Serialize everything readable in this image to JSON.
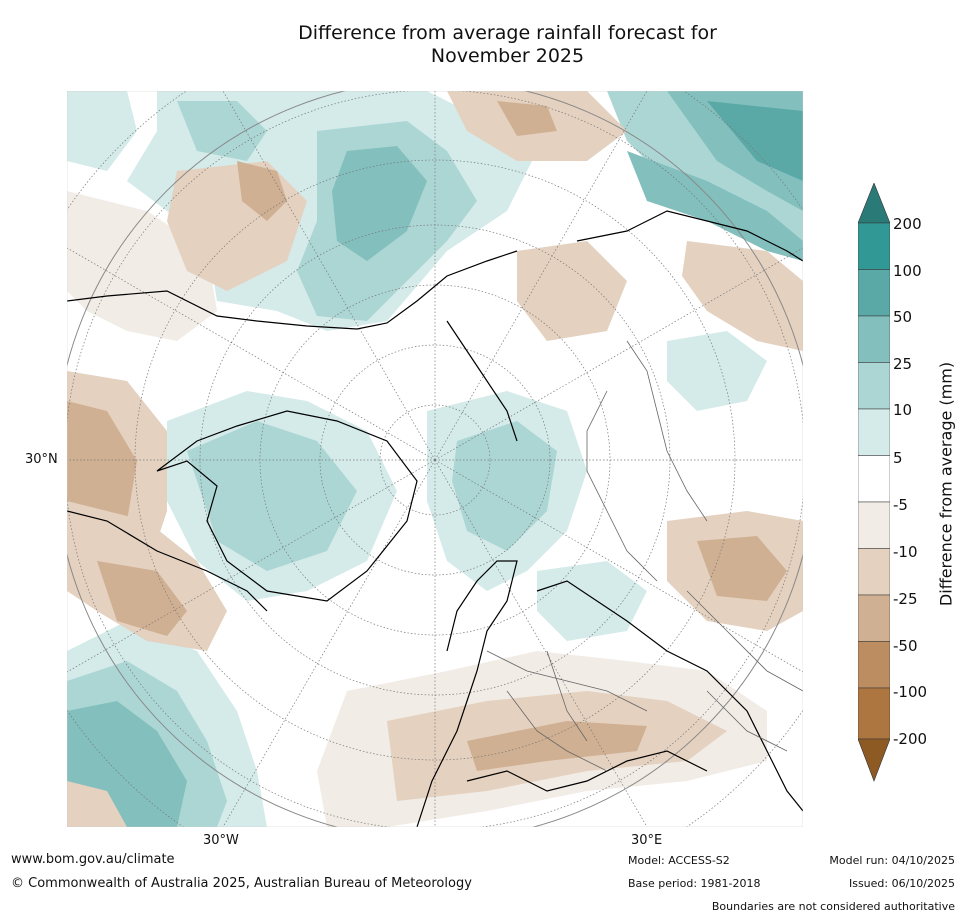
{
  "title_line1": "Difference from average rainfall forecast for",
  "title_line2": "November 2025",
  "map": {
    "lat_label": "30°N",
    "lon_label_west": "30°W",
    "lon_label_east": "30°E"
  },
  "colorbar": {
    "title": "Difference from average (mm)",
    "ticks": [
      "200",
      "100",
      "50",
      "25",
      "10",
      "5",
      "-5",
      "-10",
      "-25",
      "-50",
      "-100",
      "-200"
    ],
    "colors": {
      "above_200": "#2a7b78",
      "c100_200": "#319895",
      "c50_100": "#5aa9a7",
      "c25_50": "#82bfbd",
      "c10_25": "#acd6d4",
      "c5_10": "#d4ebea",
      "neutral": "#ffffff",
      "cm5_m10": "#f1ece6",
      "cm10_m25": "#e4d1c0",
      "cm25_m50": "#d0b092",
      "cm50_m100": "#bd8d62",
      "cm100_m200": "#ad7540",
      "below_m200": "#8d5a24"
    }
  },
  "footer": {
    "website": "www.bom.gov.au/climate",
    "copyright": "© Commonwealth of Australia 2025, Australian Bureau of Meteorology",
    "model": "Model: ACCESS-S2",
    "base_period": "Base period: 1981-2018",
    "model_run": "Model run: 04/10/2025",
    "issued": "Issued: 06/10/2025",
    "disclaimer": "Boundaries are not considered authoritative"
  }
}
